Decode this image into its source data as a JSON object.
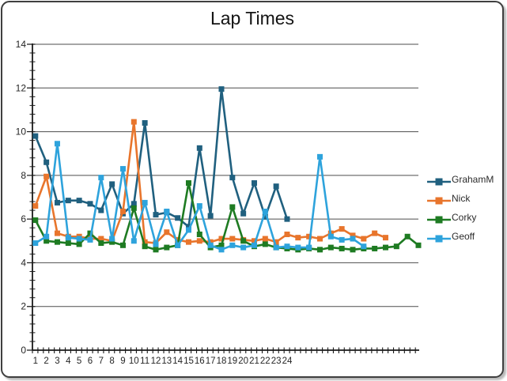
{
  "chart_data": {
    "type": "line",
    "title": "Lap Times",
    "xlabel": "",
    "ylabel": "",
    "ylim": [
      0,
      14
    ],
    "y_ticks": [
      0,
      2,
      4,
      6,
      8,
      10,
      12,
      14
    ],
    "y_minor_tick_step": 0.4,
    "n_categories": 36,
    "x_labels_visible": [
      "1",
      "2",
      "3",
      "4",
      "5",
      "6",
      "7",
      "8",
      "9",
      "10",
      "11",
      "12",
      "13",
      "14",
      "15",
      "16",
      "17",
      "18",
      "19",
      "20",
      "21",
      "22",
      "23",
      "24"
    ],
    "grid": "horizontal-major",
    "legend_position": "right",
    "marker": "square",
    "series": [
      {
        "name": "GrahamM",
        "color": "#20607f",
        "values": [
          9.8,
          8.6,
          6.75,
          6.85,
          6.85,
          6.7,
          6.4,
          7.6,
          6.25,
          6.7,
          10.4,
          6.2,
          6.3,
          6.05,
          5.65,
          9.25,
          6.15,
          11.95,
          7.9,
          6.25,
          7.65,
          6.1,
          7.5,
          6.0
        ]
      },
      {
        "name": "Nick",
        "color": "#e8752c",
        "values": [
          6.6,
          7.95,
          5.35,
          5.2,
          5.2,
          5.1,
          5.1,
          5.0,
          6.35,
          10.45,
          4.95,
          4.9,
          5.4,
          5.05,
          4.95,
          5.0,
          4.95,
          5.1,
          5.1,
          5.05,
          5.0,
          5.1,
          4.95,
          5.3,
          5.15,
          5.2,
          5.1,
          5.35,
          5.55,
          5.25,
          5.1,
          5.35,
          5.15
        ]
      },
      {
        "name": "Corky",
        "color": "#1e7b22",
        "values": [
          5.95,
          5.0,
          4.95,
          4.9,
          4.85,
          5.35,
          4.9,
          4.95,
          4.8,
          6.5,
          4.75,
          4.6,
          4.7,
          4.8,
          7.65,
          5.3,
          4.7,
          4.8,
          6.55,
          5.0,
          4.75,
          4.85,
          4.7,
          4.65,
          4.6,
          4.65,
          4.6,
          4.7,
          4.65,
          4.6,
          4.65,
          4.65,
          4.7,
          4.75,
          5.2,
          4.8
        ]
      },
      {
        "name": "Geoff",
        "color": "#2ea3dc",
        "values": [
          4.9,
          5.2,
          9.45,
          5.15,
          5.1,
          5.05,
          7.9,
          5.1,
          8.3,
          5.0,
          6.75,
          4.85,
          6.35,
          4.8,
          5.5,
          6.6,
          4.8,
          4.6,
          4.8,
          4.7,
          4.8,
          6.35,
          4.7,
          4.75,
          4.7,
          4.7,
          8.85,
          5.2,
          5.05,
          5.1,
          4.75
        ]
      }
    ],
    "colors": {
      "gridline": "#4d4d4d",
      "axis": "#1a1a1a",
      "tick_label": "#262626"
    }
  }
}
